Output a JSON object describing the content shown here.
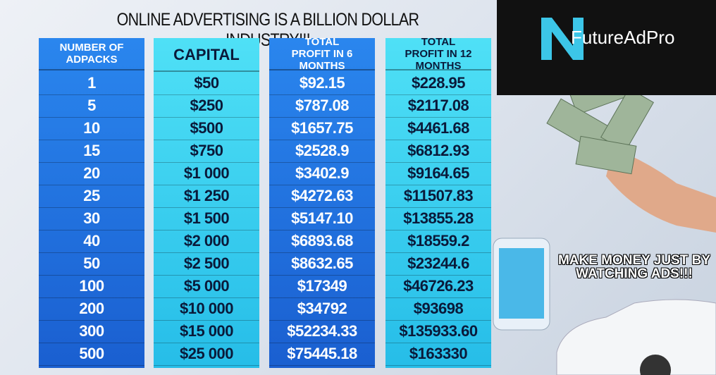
{
  "title": "ONLINE ADVERTISING IS A BILLION DOLLAR INDUSTRY!!!",
  "brand": "FutureAdPro",
  "slogan": "MAKE MONEY JUST BY WATCHING ADS!!!",
  "table": {
    "headers": [
      "NUMBER OF ADPACKS",
      "CAPITAL",
      "TOTAL PROFIT IN 6 MONTHS",
      "TOTAL PROFIT IN 12 MONTHS"
    ],
    "rows": [
      [
        "1",
        "$50",
        "$92.15",
        "$228.95"
      ],
      [
        "5",
        "$250",
        "$787.08",
        "$2117.08"
      ],
      [
        "10",
        "$500",
        "$1657.75",
        "$4461.68"
      ],
      [
        "15",
        "$750",
        "$2528.9",
        "$6812.93"
      ],
      [
        "20",
        "$1 000",
        "$3402.9",
        "$9164.65"
      ],
      [
        "25",
        "$1 250",
        "$4272.63",
        "$11507.83"
      ],
      [
        "30",
        "$1 500",
        "$5147.10",
        "$13855.28"
      ],
      [
        "40",
        "$2 000",
        "$6893.68",
        "$18559.2"
      ],
      [
        "50",
        "$2 500",
        "$8632.65",
        "$23244.6"
      ],
      [
        "100",
        "$5 000",
        "$17349",
        "$46726.23"
      ],
      [
        "200",
        "$10 000",
        "$34792",
        "$93698"
      ],
      [
        "300",
        "$15 000",
        "$52234.33",
        "$135933.60"
      ],
      [
        "500",
        "$25 000",
        "$75445.18",
        "$163330"
      ]
    ]
  }
}
